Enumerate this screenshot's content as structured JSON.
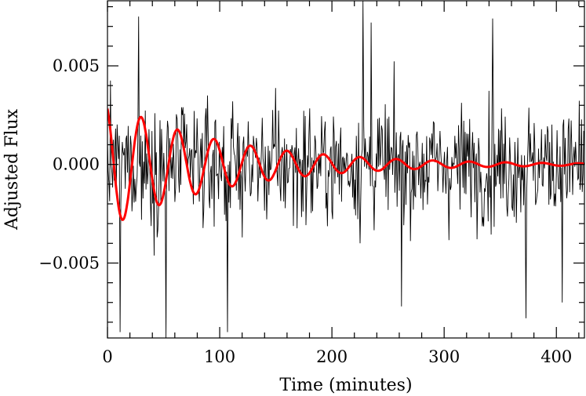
{
  "chart_data": {
    "type": "line",
    "title": "",
    "xlabel": "Time (minutes)",
    "ylabel": "Adjusted Flux",
    "xlim": [
      0,
      425
    ],
    "ylim": [
      -0.0088,
      0.0083
    ],
    "x_ticks": [
      0,
      100,
      200,
      300,
      400
    ],
    "x_tick_labels": [
      "0",
      "100",
      "200",
      "300",
      "400"
    ],
    "y_ticks": [
      -0.005,
      0.0,
      0.005
    ],
    "y_tick_labels": [
      "−0.005",
      "0.000",
      "0.005"
    ],
    "grid": false,
    "legend": "none",
    "series": [
      {
        "style": "thin-black-noisy",
        "color": "#000000",
        "noise_amplitude": 0.0028,
        "x_start": 0,
        "x_step": 0.66,
        "notable_points": [
          {
            "x": 11,
            "y": -0.0085
          },
          {
            "x": 28,
            "y": 0.0075
          },
          {
            "x": 52,
            "y": -0.0088
          },
          {
            "x": 107,
            "y": -0.0085
          },
          {
            "x": 228,
            "y": 0.0083
          },
          {
            "x": 235,
            "y": 0.0072
          },
          {
            "x": 262,
            "y": -0.0072
          },
          {
            "x": 343,
            "y": 0.0074
          },
          {
            "x": 373,
            "y": -0.0078
          },
          {
            "x": 405,
            "y": -0.007
          }
        ]
      },
      {
        "style": "thick-red-damped-sinusoid",
        "color": "#ff0000",
        "amplitude": 0.0032,
        "period_minutes": 32.5,
        "decay_minutes": 105,
        "phase_peak_x": -2.5,
        "offset": 0.0
      }
    ]
  }
}
